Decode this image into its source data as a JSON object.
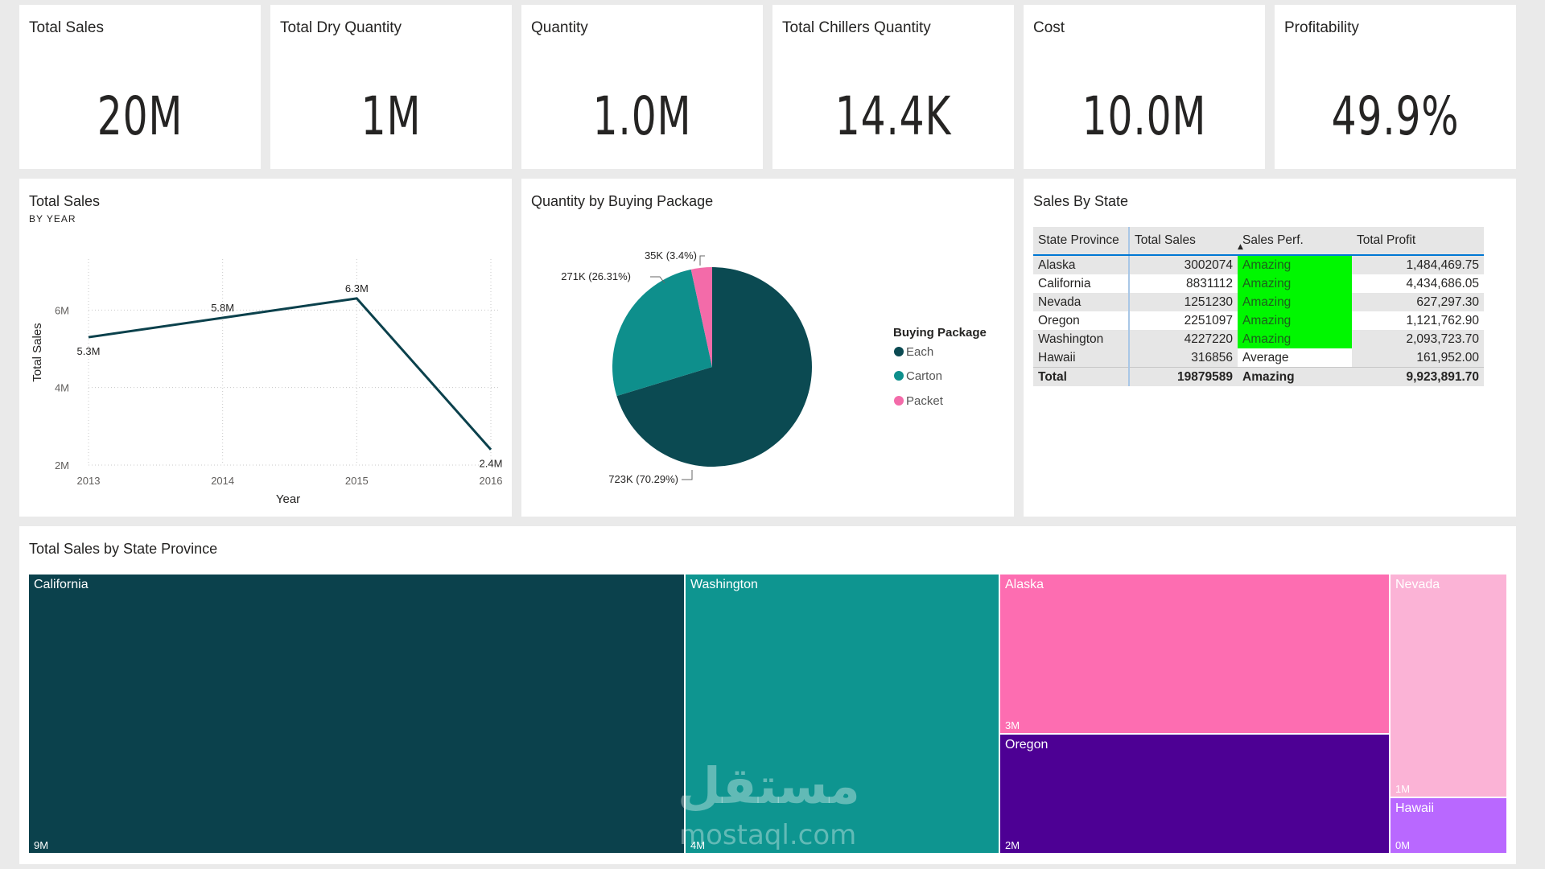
{
  "kpis": [
    {
      "label": "Total Sales",
      "value": "20M"
    },
    {
      "label": "Total Dry Quantity",
      "value": "1M"
    },
    {
      "label": "Quantity",
      "value": "1.0M"
    },
    {
      "label": "Total Chillers Quantity",
      "value": "14.4K"
    },
    {
      "label": "Cost",
      "value": "10.0M"
    },
    {
      "label": "Profitability",
      "value": "49.9%"
    }
  ],
  "line_chart": {
    "title": "Total Sales",
    "subtitle": "BY YEAR",
    "y_title": "Total Sales",
    "x_title": "Year"
  },
  "pie_chart": {
    "title": "Quantity by Buying Package",
    "legend_title": "Buying Package",
    "legend": [
      {
        "label": "Each",
        "color": "#0b4a52"
      },
      {
        "label": "Carton",
        "color": "#0e8f8c"
      },
      {
        "label": "Packet",
        "color": "#f36ba9"
      }
    ],
    "labels": [
      "35K (3.4%)",
      "271K (26.31%)",
      "723K (70.29%)"
    ]
  },
  "state_table": {
    "title": "Sales By State",
    "headers": [
      "State Province",
      "Total Sales",
      "Sales Perf.",
      "Total Profit"
    ],
    "rows": [
      [
        "Alaska",
        "3002074",
        "Amazing",
        "1,484,469.75"
      ],
      [
        "California",
        "8831112",
        "Amazing",
        "4,434,686.05"
      ],
      [
        "Nevada",
        "1251230",
        "Amazing",
        "627,297.30"
      ],
      [
        "Oregon",
        "2251097",
        "Amazing",
        "1,121,762.90"
      ],
      [
        "Washington",
        "4227220",
        "Amazing",
        "2,093,723.70"
      ],
      [
        "Hawaii",
        "316856",
        "Average",
        "161,952.00"
      ]
    ],
    "total": [
      "Total",
      "19879589",
      "Amazing",
      "9,923,891.70"
    ],
    "amazing_color": "#00f700"
  },
  "treemap": {
    "title": "Total Sales by State Province",
    "tiles": [
      {
        "name": "California",
        "value": "9M",
        "color": "#0b414c"
      },
      {
        "name": "Washington",
        "value": "4M",
        "color": "#0e9590"
      },
      {
        "name": "Alaska",
        "value": "3M",
        "color": "#fd6db1"
      },
      {
        "name": "Oregon",
        "value": "2M",
        "color": "#4d0094"
      },
      {
        "name": "Nevada",
        "value": "1M",
        "color": "#fbb3d6"
      },
      {
        "name": "Hawaii",
        "value": "0M",
        "color": "#b968ff"
      }
    ]
  },
  "watermark": {
    "arabic": "مستقل",
    "latin": "mostaql.com"
  },
  "chart_data": [
    {
      "type": "line",
      "title": "Total Sales",
      "subtitle": "BY YEAR",
      "xlabel": "Year",
      "ylabel": "Total Sales",
      "x": [
        "2013",
        "2014",
        "2015",
        "2016"
      ],
      "values": [
        5.3,
        5.8,
        6.3,
        2.4
      ],
      "data_labels": [
        "5.3M",
        "5.8M",
        "6.3M",
        "2.4M"
      ],
      "y_ticks": [
        "2M",
        "4M",
        "6M"
      ],
      "ylim": [
        2,
        6.9
      ],
      "grid": true,
      "color": "#0b414c"
    },
    {
      "type": "pie",
      "title": "Quantity by Buying Package",
      "categories": [
        "Each",
        "Carton",
        "Packet"
      ],
      "values": [
        70.29,
        26.31,
        3.4
      ],
      "labels": [
        "723K (70.29%)",
        "271K (26.31%)",
        "35K (3.4%)"
      ],
      "colors": [
        "#0b4a52",
        "#0e8f8c",
        "#f36ba9"
      ],
      "legend": "right"
    },
    {
      "type": "treemap",
      "title": "Total Sales by State Province",
      "categories": [
        "California",
        "Washington",
        "Alaska",
        "Oregon",
        "Nevada",
        "Hawaii"
      ],
      "values": [
        8831112,
        4227220,
        3002074,
        2251097,
        1251230,
        316856
      ]
    }
  ]
}
